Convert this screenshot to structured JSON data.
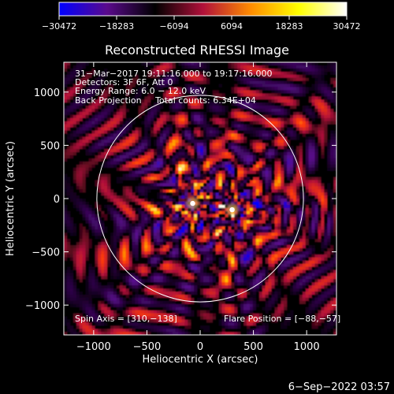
{
  "chart_data": {
    "type": "heatmap",
    "title": "Reconstructed RHESSI Image",
    "xlabel": "Heliocentric X (arcsec)",
    "ylabel": "Heliocentric Y (arcsec)",
    "xlim": [
      -1280,
      1280
    ],
    "ylim": [
      -1280,
      1280
    ],
    "x_ticks": [
      {
        "value": -1000,
        "label": "−1000"
      },
      {
        "value": -500,
        "label": "−500"
      },
      {
        "value": 0,
        "label": "0"
      },
      {
        "value": 500,
        "label": "500"
      },
      {
        "value": 1000,
        "label": "1000"
      }
    ],
    "y_ticks": [
      {
        "value": 1000,
        "label": "1000"
      },
      {
        "value": 500,
        "label": "500"
      },
      {
        "value": 0,
        "label": "0"
      },
      {
        "value": -500,
        "label": "−500"
      },
      {
        "value": -1000,
        "label": "−1000"
      }
    ],
    "colorbar": {
      "range": [
        -30472,
        30472
      ],
      "tick_values": [
        -30472,
        -18283,
        -6094,
        6094,
        18283,
        30472
      ],
      "tick_labels": [
        "−30472",
        "−18283",
        "−6094",
        "6094",
        "18283",
        "30472"
      ],
      "colors": [
        "#0000ff",
        "#5a0a8c",
        "#000000",
        "#b0103a",
        "#ff8c00",
        "#ffff00",
        "#ffffff"
      ]
    },
    "info_lines": [
      "31−Mar−2017 19:11:16.000 to 19:17:16.000",
      "Detectors: 3F 6F, Att 0",
      "Energy Range: 6.0 − 12.0 keV",
      "Back Projection     Total counts: 6.34E+04"
    ],
    "spin_axis_text": "Spin Axis = [310,−138]",
    "flare_position_text": "Flare Position = [−88,−57]",
    "spin_axis": [
      310,
      -138
    ],
    "flare_position": [
      -88,
      -57
    ],
    "solar_disk": {
      "center": [
        0,
        0
      ],
      "radius": 970
    },
    "bright_sources": [
      {
        "x": -70,
        "y": -45,
        "level": 1.0
      },
      {
        "x": 300,
        "y": -105,
        "level": 0.9
      }
    ],
    "timestamp": "6−Sep−2022 03:57"
  }
}
